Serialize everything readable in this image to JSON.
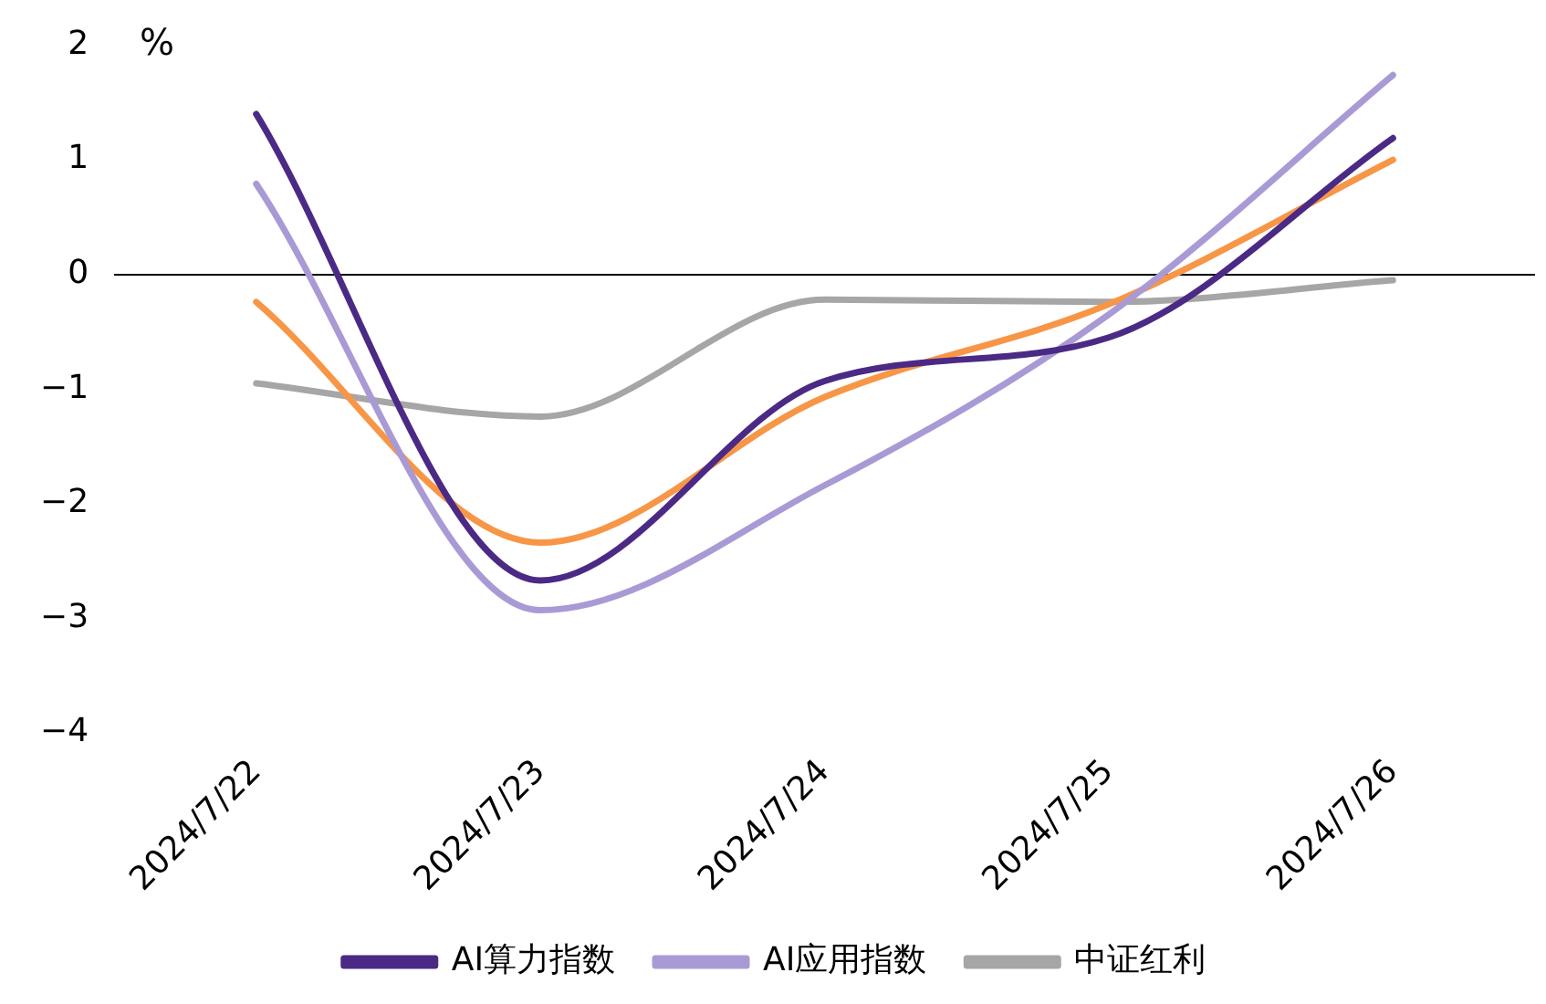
{
  "chart_data": {
    "type": "line",
    "ylabel": "%",
    "categories": [
      "2024/7/22",
      "2024/7/23",
      "2024/7/24",
      "2024/7/25",
      "2024/7/26"
    ],
    "series": [
      {
        "name": "AI算力指数",
        "color": "#4b2a85",
        "values": [
          1.4,
          -2.67,
          -0.93,
          -0.55,
          1.19
        ]
      },
      {
        "name": "AI应用指数",
        "color": "#a99ad6",
        "values": [
          0.79,
          -2.93,
          -1.84,
          -0.35,
          1.74
        ]
      },
      {
        "color": "#f79646",
        "values": [
          -0.24,
          -2.34,
          -1.07,
          -0.26,
          1.0
        ]
      },
      {
        "name": "中证红利",
        "color": "#a6a6a6",
        "values": [
          -0.95,
          -1.24,
          -0.22,
          -0.24,
          -0.05
        ]
      }
    ],
    "ref_lines": [
      {
        "axis": "y",
        "value": 0,
        "color": "#000000"
      }
    ],
    "ylim": [
      -4,
      2
    ],
    "yticks": [
      -4,
      -3,
      -2,
      -1,
      0,
      1,
      2
    ],
    "grid": false,
    "legend": "bottom",
    "marker": "none",
    "line_style": "solid"
  }
}
